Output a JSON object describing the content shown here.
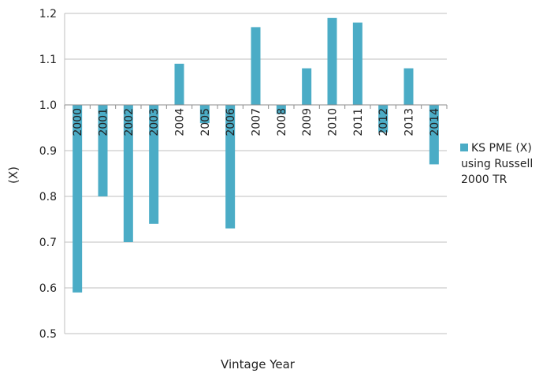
{
  "chart_data": {
    "type": "bar",
    "categories": [
      "2000",
      "2001",
      "2002",
      "2003",
      "2004",
      "2005",
      "2006",
      "2007",
      "2008",
      "2009",
      "2010",
      "2011",
      "2012",
      "2013",
      "2014"
    ],
    "series": [
      {
        "name": "KS PME (X) using Russell 2000 TR",
        "values": [
          0.59,
          0.8,
          0.7,
          0.74,
          1.09,
          0.96,
          0.73,
          1.17,
          0.98,
          1.08,
          1.19,
          1.18,
          0.94,
          1.08,
          0.87
        ],
        "color": "#4bacc6"
      }
    ],
    "baseline": 1.0,
    "xlabel": "Vintage Year",
    "ylabel": "(X)",
    "ylim": [
      0.5,
      1.2
    ],
    "yticks": [
      "0.5",
      "0.6",
      "0.7",
      "0.8",
      "0.9",
      "1.0",
      "1.1",
      "1.2"
    ],
    "grid": true,
    "legend": {
      "position": "right",
      "lines": [
        "KS PME (X)",
        "using Russell",
        "2000 TR"
      ]
    }
  }
}
